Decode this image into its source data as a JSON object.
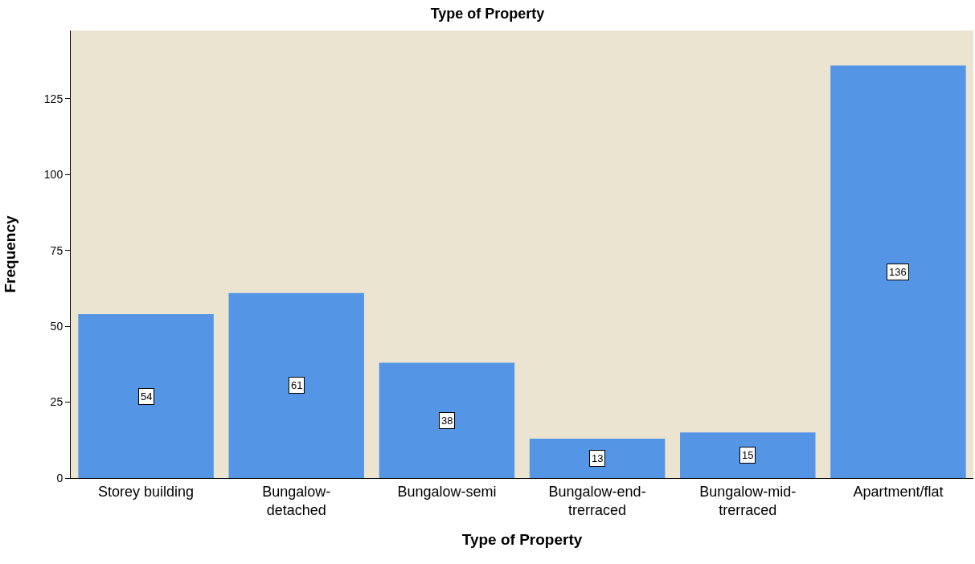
{
  "chart_data": {
    "type": "bar",
    "title": "Type of Property",
    "xlabel": "Type of Property",
    "ylabel": "Frequency",
    "categories": [
      "Storey building",
      "Bungalow-detached",
      "Bungalow-semi",
      "Bungalow-end-trerraced",
      "Bungalow-mid-trerraced",
      "Apartment/flat"
    ],
    "values": [
      54,
      61,
      38,
      13,
      15,
      136
    ],
    "color": "#5595e5",
    "ylim": [
      0,
      147.5
    ],
    "yticks": [
      0,
      25,
      50,
      75,
      100,
      125
    ],
    "grid": false,
    "data_labels": true
  }
}
